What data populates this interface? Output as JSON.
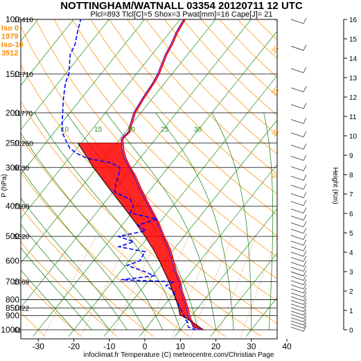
{
  "chart_data": {
    "type": "skew-t",
    "title": "NOTTINGHAM/WATNALL 03354 20120711 12 UTC",
    "subtitle": "Plcl=893 Tlcl[C]=5 Shox=3 Pwat[mm]=16 Cape[J]= 21",
    "ylabel": "P (hPa)",
    "y2label": "Height (Km)",
    "xlabel": "infoclimat.fr Temperature (C) meteocentre.com/Christian Page",
    "x_ticks": [
      -30,
      -20,
      -10,
      0,
      10,
      20,
      30,
      40
    ],
    "xlim": [
      -33,
      47
    ],
    "y_ticks": [
      100,
      150,
      200,
      250,
      300,
      400,
      500,
      600,
      700,
      800,
      850,
      900,
      1000
    ],
    "ylim": [
      100,
      1050
    ],
    "y_scale": "log",
    "height_ticks_km": [
      0,
      1,
      2,
      3,
      4,
      5,
      6,
      7,
      8,
      9,
      10,
      11,
      12,
      13,
      14,
      15,
      16
    ],
    "left_info": [
      {
        "label": "Iso 0",
        "color": "#ff8c00"
      },
      {
        "label": "1979",
        "color": "#ff8c00"
      },
      {
        "label": "Iso-10",
        "color": "#ff8c00"
      },
      {
        "label": "3512",
        "color": "#ff8c00"
      }
    ],
    "height_labels": [
      {
        "p": 100,
        "text": "16410"
      },
      {
        "p": 150,
        "text": "13710"
      },
      {
        "p": 200,
        "text": "11770"
      },
      {
        "p": 250,
        "text": "10260"
      },
      {
        "p": 300,
        "text": "9030"
      },
      {
        "p": 400,
        "text": "7100"
      },
      {
        "p": 500,
        "text": "5520"
      },
      {
        "p": 700,
        "text": "2969"
      },
      {
        "p": 850,
        "text": "1422"
      },
      {
        "p": 1000,
        "text": "61"
      }
    ],
    "dry_adiabat_labels": [
      "10",
      "15",
      "20",
      "25",
      "30"
    ],
    "mixing_ratio_labels": [
      "30",
      "20",
      "10",
      "0"
    ],
    "series": [
      {
        "name": "temperature",
        "color": "#ff0000",
        "points": [
          [
            1000,
            16.5
          ],
          [
            980,
            13.4
          ],
          [
            950,
            12.0
          ],
          [
            925,
            10.6
          ],
          [
            900,
            9.4
          ],
          [
            850,
            7.2
          ],
          [
            800,
            4.6
          ],
          [
            750,
            1.8
          ],
          [
            700,
            -0.8
          ],
          [
            650,
            -4.2
          ],
          [
            600,
            -7.4
          ],
          [
            550,
            -11.0
          ],
          [
            500,
            -15.6
          ],
          [
            450,
            -20.4
          ],
          [
            400,
            -26.4
          ],
          [
            350,
            -33.0
          ],
          [
            320,
            -37.2
          ],
          [
            300,
            -40.6
          ],
          [
            280,
            -44.0
          ],
          [
            260,
            -47.0
          ],
          [
            250,
            -48.2
          ],
          [
            245,
            -49.0
          ],
          [
            240,
            -49.2
          ],
          [
            230,
            -48.8
          ],
          [
            220,
            -49.8
          ],
          [
            200,
            -51.6
          ],
          [
            180,
            -52.4
          ],
          [
            160,
            -53.0
          ],
          [
            150,
            -53.6
          ],
          [
            130,
            -55.8
          ],
          [
            120,
            -56.6
          ],
          [
            110,
            -57.8
          ],
          [
            100,
            -58.6
          ]
        ]
      },
      {
        "name": "dewpoint",
        "color": "#0000ff",
        "points": [
          [
            1000,
            14.5
          ],
          [
            980,
            11.6
          ],
          [
            950,
            10.6
          ],
          [
            925,
            9.0
          ],
          [
            900,
            7.8
          ],
          [
            850,
            5.0
          ],
          [
            800,
            2.0
          ],
          [
            750,
            -0.6
          ],
          [
            720,
            -4.0
          ],
          [
            700,
            -2.6
          ],
          [
            690,
            -18.0
          ],
          [
            670,
            -9.5
          ],
          [
            650,
            -13.0
          ],
          [
            620,
            -19.5
          ],
          [
            600,
            -17.0
          ],
          [
            560,
            -17.5
          ],
          [
            540,
            -26.0
          ],
          [
            520,
            -23.0
          ],
          [
            500,
            -28.5
          ],
          [
            480,
            -22.0
          ],
          [
            460,
            -25.5
          ],
          [
            440,
            -21.5
          ],
          [
            420,
            -30.5
          ],
          [
            400,
            -31.0
          ],
          [
            380,
            -33.5
          ],
          [
            360,
            -39.5
          ],
          [
            340,
            -41.0
          ],
          [
            320,
            -42.0
          ],
          [
            300,
            -43.6
          ],
          [
            290,
            -47.0
          ],
          [
            280,
            -55.0
          ],
          [
            270,
            -59.0
          ],
          [
            260,
            -62.0
          ],
          [
            250,
            -64.0
          ],
          [
            230,
            -68.0
          ],
          [
            200,
            -72.0
          ],
          [
            180,
            -75.0
          ],
          [
            160,
            -78.0
          ],
          [
            150,
            -79.0
          ],
          [
            130,
            -83.0
          ],
          [
            120,
            -84.0
          ],
          [
            110,
            -86.0
          ],
          [
            100,
            -88.0
          ]
        ]
      },
      {
        "name": "virtual temperature",
        "color": "#6a0dad",
        "points": [
          [
            1000,
            16.0
          ],
          [
            980,
            13.0
          ],
          [
            950,
            11.6
          ],
          [
            925,
            10.2
          ],
          [
            900,
            9.0
          ],
          [
            850,
            6.8
          ],
          [
            800,
            4.2
          ],
          [
            750,
            1.4
          ],
          [
            700,
            -1.2
          ],
          [
            650,
            -4.6
          ],
          [
            600,
            -7.8
          ],
          [
            550,
            -11.4
          ],
          [
            500,
            -16.0
          ],
          [
            450,
            -20.8
          ],
          [
            400,
            -26.8
          ],
          [
            350,
            -33.4
          ],
          [
            320,
            -37.6
          ],
          [
            300,
            -41.0
          ],
          [
            280,
            -44.4
          ],
          [
            260,
            -47.4
          ],
          [
            250,
            -48.6
          ],
          [
            245,
            -49.4
          ],
          [
            240,
            -49.6
          ],
          [
            230,
            -49.2
          ],
          [
            220,
            -50.2
          ],
          [
            200,
            -52.0
          ],
          [
            180,
            -52.8
          ],
          [
            160,
            -53.4
          ],
          [
            150,
            -54.0
          ],
          [
            130,
            -56.2
          ],
          [
            120,
            -57.0
          ],
          [
            110,
            -58.2
          ],
          [
            100,
            -59.0
          ]
        ]
      },
      {
        "name": "parcel",
        "color": "#000000",
        "points": [
          [
            1000,
            16.5
          ],
          [
            950,
            12.2
          ],
          [
            893,
            6.4
          ],
          [
            850,
            4.6
          ],
          [
            800,
            2.0
          ],
          [
            750,
            -1.0
          ],
          [
            700,
            -4.0
          ],
          [
            650,
            -7.6
          ],
          [
            600,
            -11.4
          ],
          [
            550,
            -15.8
          ],
          [
            500,
            -21.0
          ],
          [
            450,
            -27.0
          ],
          [
            400,
            -34.0
          ],
          [
            350,
            -42.0
          ],
          [
            300,
            -51.0
          ],
          [
            250,
            -61.0
          ]
        ]
      }
    ]
  }
}
